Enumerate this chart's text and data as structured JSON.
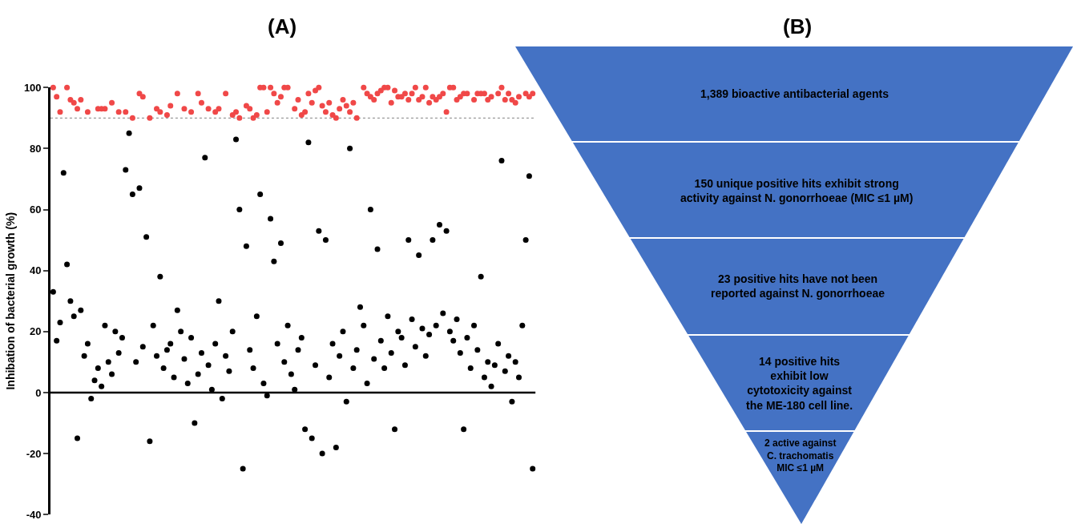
{
  "chart_data": [
    {
      "type": "scatter",
      "title": "(A)",
      "ylabel": "Inhibation of bacterial growth (%)",
      "categories": [
        null,
        null,
        null,
        null,
        null,
        null,
        null,
        null,
        null,
        null,
        null,
        null,
        null,
        null,
        null,
        null,
        null,
        null,
        null,
        null,
        null,
        null,
        null,
        null,
        null,
        null,
        null,
        null,
        null,
        null,
        null,
        null,
        null,
        null,
        null,
        null,
        null,
        null,
        null,
        null,
        null,
        null,
        null,
        null,
        null,
        null,
        null,
        null,
        null,
        null,
        null,
        null,
        null,
        null,
        null,
        null,
        null,
        null,
        null,
        null,
        null,
        null,
        null,
        null,
        null,
        null,
        null,
        null,
        null,
        null,
        null,
        null,
        null,
        null,
        null,
        null,
        null,
        null,
        null,
        null,
        null,
        null,
        null,
        null,
        null,
        null,
        null,
        null,
        null,
        null,
        null,
        null,
        null,
        null,
        null,
        null,
        null,
        null,
        null,
        null,
        null,
        null,
        null,
        null,
        null,
        null,
        null,
        null,
        null,
        null,
        null,
        null,
        null,
        null,
        null,
        null,
        null,
        null,
        null,
        null,
        null,
        null,
        null,
        null,
        null,
        null,
        null,
        null,
        null,
        null,
        null,
        null,
        null,
        null,
        null,
        null,
        null,
        null,
        null,
        null
      ],
      "series": [
        {
          "color": "#000000",
          "values": [
            33,
            17,
            23,
            72,
            42,
            30,
            25,
            -15,
            27,
            12,
            16,
            -2,
            4,
            8,
            2,
            22,
            10,
            6,
            20,
            13,
            18,
            73,
            85,
            65,
            10,
            67,
            15,
            51,
            -16,
            22,
            12,
            38,
            8,
            14,
            16,
            5,
            27,
            20,
            11,
            3,
            18,
            -10,
            6,
            13,
            77,
            9,
            1,
            16,
            30,
            -2,
            12,
            7,
            20,
            83,
            60,
            -25,
            48,
            14,
            8,
            25,
            65,
            3,
            -1,
            57,
            43,
            16,
            49,
            10,
            22,
            6,
            1,
            14,
            18,
            -12,
            82,
            -15,
            9,
            53,
            -20,
            50,
            5,
            16,
            -18,
            12,
            20,
            -3,
            80,
            8,
            14,
            28,
            22,
            3,
            60,
            11,
            47,
            17,
            8,
            25,
            13,
            -12,
            20,
            18,
            9,
            50,
            24,
            15,
            45,
            21,
            12,
            19,
            50,
            22,
            55,
            26,
            53,
            20,
            17,
            24,
            13,
            -12,
            18,
            8,
            22,
            14,
            38,
            5,
            10,
            2,
            9,
            16,
            76,
            7,
            12,
            -3,
            10,
            5,
            22,
            50,
            71,
            -25
          ]
        },
        {
          "color": "#f04848",
          "values": [
            100,
            97,
            92,
            null,
            100,
            96,
            95,
            93,
            96,
            null,
            92,
            null,
            null,
            93,
            93,
            93,
            null,
            95,
            null,
            92,
            null,
            92,
            null,
            90,
            null,
            98,
            97,
            null,
            90,
            null,
            93,
            92,
            null,
            91,
            94,
            null,
            98,
            null,
            93,
            null,
            92,
            null,
            98,
            95,
            null,
            93,
            null,
            92,
            93,
            null,
            98,
            null,
            91,
            92,
            90,
            null,
            94,
            93,
            90,
            91,
            100,
            100,
            92,
            100,
            98,
            95,
            97,
            100,
            100,
            null,
            93,
            96,
            91,
            92,
            98,
            95,
            99,
            100,
            94,
            92,
            95,
            91,
            90,
            93,
            96,
            94,
            92,
            95,
            90,
            null,
            100,
            98,
            97,
            96,
            98,
            99,
            100,
            100,
            95,
            99,
            97,
            97,
            98,
            96,
            98,
            100,
            96,
            97,
            100,
            95,
            97,
            96,
            97,
            98,
            92,
            100,
            100,
            96,
            97,
            98,
            98,
            null,
            96,
            98,
            98,
            98,
            96,
            97,
            null,
            98,
            100,
            96,
            98,
            96,
            95,
            97,
            null,
            98,
            97,
            98
          ]
        }
      ],
      "ylim": [
        -40,
        100
      ],
      "yticks": [
        -40,
        -20,
        0,
        20,
        40,
        60,
        80,
        100
      ],
      "tick_labels": "y",
      "marker": "circle",
      "ref_lines": [
        {
          "axis": "y",
          "value": 90,
          "color": "#9a9a9a",
          "line_style": "dotted"
        },
        {
          "axis": "y",
          "value": 0,
          "color": "#000000",
          "line_style": "solid"
        }
      ]
    },
    {
      "type": "other",
      "title": "(B)",
      "color": "#4472c4",
      "categories": [
        "1,389 bioactive antibacterial agents",
        "150 unique positive hits exhibit strong\nactivity against N. gonorrhoeae (MIC ≤1 µM)",
        "23 positive hits have not been\nreported against N. gonorrhoeae",
        "14 positive hits\nexhibit low\ncytotoxicity against\nthe ME-180 cell line.",
        "2 active against\nC. trachomatis\nMIC ≤1 µM"
      ]
    }
  ]
}
